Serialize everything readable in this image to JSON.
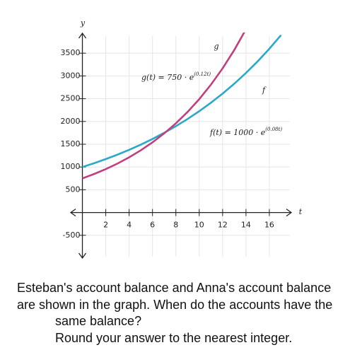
{
  "chart_data": {
    "type": "line",
    "x_label": "t",
    "y_label": "y",
    "x": [
      0,
      1,
      2,
      3,
      4,
      5,
      6,
      7,
      8,
      9,
      10,
      11,
      12,
      13,
      14,
      15,
      16,
      17
    ],
    "series": [
      {
        "name": "f",
        "color": "#2aa9c9",
        "values": [
          1000,
          1083,
          1174,
          1271,
          1377,
          1492,
          1616,
          1751,
          1896,
          2054,
          2226,
          2411,
          2612,
          2829,
          3065,
          3320,
          3597,
          3896
        ]
      },
      {
        "name": "g",
        "color": "#c23f7d",
        "values": [
          750,
          846,
          953,
          1075,
          1212,
          1367,
          1541,
          1738,
          1959,
          2209,
          2490,
          2808,
          3166,
          3570,
          4025,
          null,
          null,
          null
        ]
      }
    ],
    "annotations": [
      {
        "text": "f(t) = 1000 · e",
        "sup": "(0.08t)"
      },
      {
        "text": "g(t) = 750 · e",
        "sup": "(0.12t)"
      }
    ],
    "xlim": [
      -1,
      18
    ],
    "ylim": [
      -1000,
      4000
    ],
    "xticks": [
      2,
      4,
      6,
      8,
      10,
      12,
      14,
      16
    ],
    "yticks": [
      -500,
      500,
      1000,
      1500,
      2000,
      2500,
      3000,
      3500
    ],
    "grid": true
  },
  "question_lines": [
    "Esteban's account balance and Anna's account balance",
    "are shown in the graph. When do the accounts have the",
    "same balance?",
    "Round your answer to the nearest integer."
  ]
}
